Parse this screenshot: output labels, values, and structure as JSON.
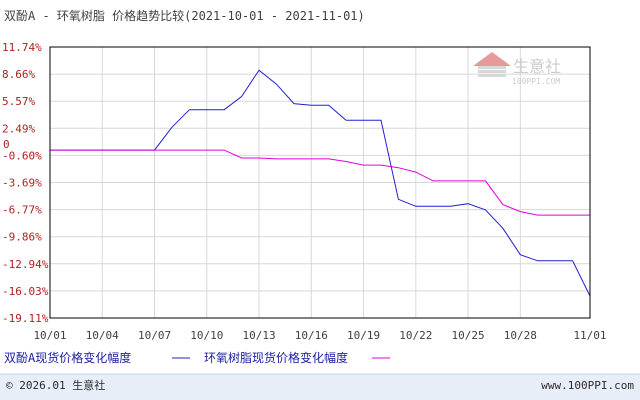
{
  "chart_data": {
    "type": "line",
    "title": "双酚A - 环氧树脂 价格趋势比较(2021-10-01 - 2021-11-01)",
    "xlabel": "",
    "ylabel": "",
    "x_ticks": [
      "10/01",
      "10/04",
      "10/07",
      "10/10",
      "10/13",
      "10/16",
      "10/19",
      "10/22",
      "10/25",
      "10/28",
      "11/01"
    ],
    "y_ticks": [
      "11.74%",
      "8.66%",
      "5.57%",
      "2.49%",
      "-0.60%",
      "-3.69%",
      "-6.77%",
      "-9.86%",
      "-12.94%",
      "-16.03%",
      "-19.11%"
    ],
    "zero_label": "0",
    "ylim": [
      -19.11,
      11.74
    ],
    "grid": true,
    "legend_position": "bottom",
    "series": [
      {
        "name": "双酚A现货价格变化幅度",
        "color": "#2020d0",
        "points": [
          [
            "10/01",
            0
          ],
          [
            "10/02",
            0
          ],
          [
            "10/03",
            0
          ],
          [
            "10/04",
            0
          ],
          [
            "10/05",
            0
          ],
          [
            "10/06",
            0
          ],
          [
            "10/07",
            0
          ],
          [
            "10/08",
            2.6
          ],
          [
            "10/09",
            4.6
          ],
          [
            "10/10",
            4.6
          ],
          [
            "10/11",
            4.6
          ],
          [
            "10/12",
            6.1
          ],
          [
            "10/13",
            9.1
          ],
          [
            "10/14",
            7.5
          ],
          [
            "10/15",
            5.3
          ],
          [
            "10/16",
            5.1
          ],
          [
            "10/17",
            5.1
          ],
          [
            "10/18",
            3.4
          ],
          [
            "10/19",
            3.4
          ],
          [
            "10/20",
            3.4
          ],
          [
            "10/21",
            -5.6
          ],
          [
            "10/22",
            -6.4
          ],
          [
            "10/23",
            -6.4
          ],
          [
            "10/24",
            -6.4
          ],
          [
            "10/25",
            -6.1
          ],
          [
            "10/26",
            -6.8
          ],
          [
            "10/27",
            -8.9
          ],
          [
            "10/28",
            -11.9
          ],
          [
            "10/29",
            -12.6
          ],
          [
            "10/30",
            -12.6
          ],
          [
            "10/31",
            -12.6
          ],
          [
            "11/01",
            -16.6
          ]
        ]
      },
      {
        "name": "环氧树脂现货价格变化幅度",
        "color": "#e000e0",
        "points": [
          [
            "10/01",
            0
          ],
          [
            "10/02",
            0
          ],
          [
            "10/03",
            0
          ],
          [
            "10/04",
            0
          ],
          [
            "10/05",
            0
          ],
          [
            "10/06",
            0
          ],
          [
            "10/07",
            0
          ],
          [
            "10/08",
            0
          ],
          [
            "10/09",
            0
          ],
          [
            "10/10",
            0
          ],
          [
            "10/11",
            0
          ],
          [
            "10/12",
            -0.9
          ],
          [
            "10/13",
            -0.9
          ],
          [
            "10/14",
            -1.0
          ],
          [
            "10/15",
            -1.0
          ],
          [
            "10/16",
            -1.0
          ],
          [
            "10/17",
            -1.0
          ],
          [
            "10/18",
            -1.3
          ],
          [
            "10/19",
            -1.7
          ],
          [
            "10/20",
            -1.7
          ],
          [
            "10/21",
            -2.0
          ],
          [
            "10/22",
            -2.5
          ],
          [
            "10/23",
            -3.5
          ],
          [
            "10/24",
            -3.5
          ],
          [
            "10/25",
            -3.5
          ],
          [
            "10/26",
            -3.5
          ],
          [
            "10/27",
            -6.2
          ],
          [
            "10/28",
            -7.0
          ],
          [
            "10/29",
            -7.4
          ],
          [
            "10/30",
            -7.4
          ],
          [
            "10/31",
            -7.4
          ],
          [
            "11/01",
            -7.4
          ]
        ]
      }
    ]
  },
  "watermark": {
    "text": "生意社",
    "url": "100PPI.COM"
  },
  "footer": {
    "copyright": "© 2026.01 生意社",
    "website": "www.100PPI.com"
  },
  "colors": {
    "plot_border": "#000000",
    "grid": "#d8d8d8",
    "axis_text": "#b02020",
    "title_text": "#404040",
    "legend_text": "#2020a0",
    "footer_bg": "#e8eef8",
    "footer_text": "#2a2a2a"
  }
}
